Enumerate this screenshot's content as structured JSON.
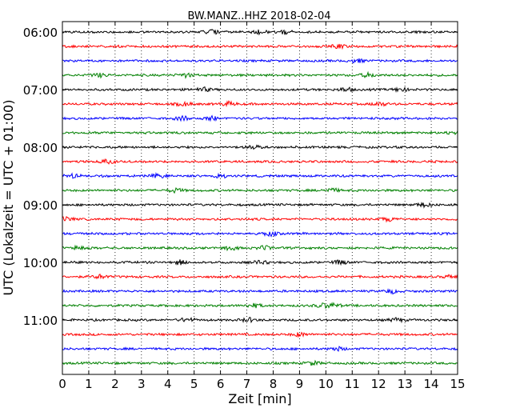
{
  "chart_data": {
    "type": "line",
    "title": "BW.MANZ..HHZ 2018-02-04",
    "xlabel": "Zeit  [min]",
    "ylabel": "UTC (Lokalzeit = UTC + 01:00)",
    "xlim": [
      0,
      15
    ],
    "x_ticks": [
      "0",
      "1",
      "2",
      "3",
      "4",
      "5",
      "6",
      "7",
      "8",
      "9",
      "10",
      "11",
      "12",
      "13",
      "14",
      "15"
    ],
    "y_ticks": [
      "06:00",
      "07:00",
      "08:00",
      "09:00",
      "10:00",
      "11:00"
    ],
    "grid": "vertical-dotted",
    "trace_interval_minutes": 15,
    "start_time": "06:00",
    "trace_count": 24,
    "trace_colors": [
      "#000000",
      "#ff0000",
      "#0000ff",
      "#008000"
    ]
  }
}
